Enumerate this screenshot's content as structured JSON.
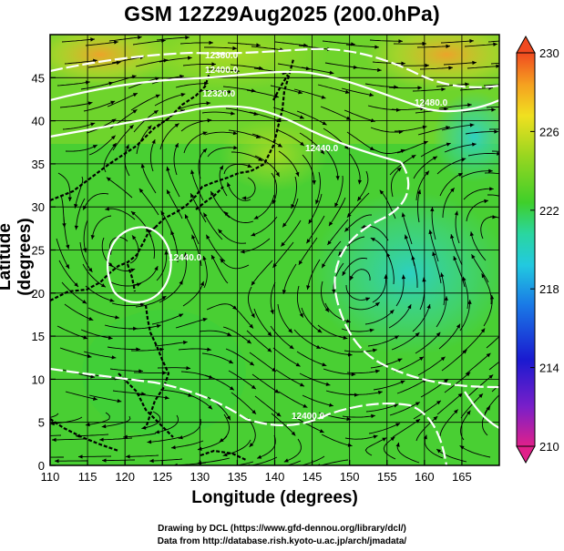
{
  "title": "GSM 12Z29Aug2025 (200.0hPa)",
  "x_axis": {
    "label": "Longitude (degrees)",
    "ticks": [
      "110",
      "115",
      "120",
      "125",
      "130",
      "135",
      "140",
      "145",
      "150",
      "155",
      "160",
      "165"
    ],
    "range": [
      110,
      170
    ]
  },
  "y_axis": {
    "label": "Latitude  (degrees)",
    "ticks": [
      "0",
      "5",
      "10",
      "15",
      "20",
      "25",
      "30",
      "35",
      "40",
      "45"
    ],
    "range": [
      0,
      50
    ]
  },
  "colorbar": {
    "ticks": [
      "230",
      "226",
      "222",
      "218",
      "214",
      "210"
    ],
    "range": [
      210,
      230
    ],
    "colors": [
      "#e0208a",
      "#7a1fc9",
      "#1a1ad0",
      "#1a7ae6",
      "#22c9e0",
      "#2ad6a0",
      "#3fcf2a",
      "#9ad620",
      "#f0e020",
      "#f5a020",
      "#f04a20"
    ]
  },
  "contour_labels": [
    "12360.0",
    "12400.0",
    "12320.0",
    "12440.0",
    "12480.0",
    "12400.0",
    "12440.0"
  ],
  "credits": {
    "line1": "Drawing by DCL (https://www.gfd-dennou.org/library/dcl/)",
    "line2": "Data from http://database.rish.kyoto-u.ac.jp/arch/jmadata/"
  }
}
